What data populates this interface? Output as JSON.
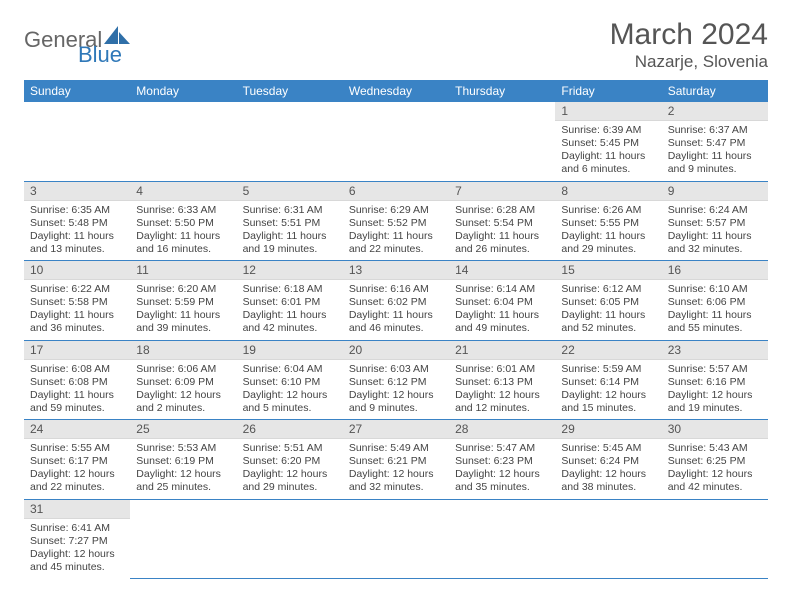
{
  "brand": {
    "part1": "General",
    "part2": "Blue"
  },
  "title": "March 2024",
  "location": "Nazarje, Slovenia",
  "colors": {
    "header_bg": "#3a83c5",
    "header_fg": "#ffffff",
    "daynum_bg": "#e6e6e6",
    "row_divider": "#3a83c5",
    "text": "#444444"
  },
  "weekdays": [
    "Sunday",
    "Monday",
    "Tuesday",
    "Wednesday",
    "Thursday",
    "Friday",
    "Saturday"
  ],
  "weeks": [
    [
      {
        "empty": true
      },
      {
        "empty": true
      },
      {
        "empty": true
      },
      {
        "empty": true
      },
      {
        "empty": true
      },
      {
        "day": "1",
        "sunrise": "Sunrise: 6:39 AM",
        "sunset": "Sunset: 5:45 PM",
        "daylight": "Daylight: 11 hours and 6 minutes."
      },
      {
        "day": "2",
        "sunrise": "Sunrise: 6:37 AM",
        "sunset": "Sunset: 5:47 PM",
        "daylight": "Daylight: 11 hours and 9 minutes."
      }
    ],
    [
      {
        "day": "3",
        "sunrise": "Sunrise: 6:35 AM",
        "sunset": "Sunset: 5:48 PM",
        "daylight": "Daylight: 11 hours and 13 minutes."
      },
      {
        "day": "4",
        "sunrise": "Sunrise: 6:33 AM",
        "sunset": "Sunset: 5:50 PM",
        "daylight": "Daylight: 11 hours and 16 minutes."
      },
      {
        "day": "5",
        "sunrise": "Sunrise: 6:31 AM",
        "sunset": "Sunset: 5:51 PM",
        "daylight": "Daylight: 11 hours and 19 minutes."
      },
      {
        "day": "6",
        "sunrise": "Sunrise: 6:29 AM",
        "sunset": "Sunset: 5:52 PM",
        "daylight": "Daylight: 11 hours and 22 minutes."
      },
      {
        "day": "7",
        "sunrise": "Sunrise: 6:28 AM",
        "sunset": "Sunset: 5:54 PM",
        "daylight": "Daylight: 11 hours and 26 minutes."
      },
      {
        "day": "8",
        "sunrise": "Sunrise: 6:26 AM",
        "sunset": "Sunset: 5:55 PM",
        "daylight": "Daylight: 11 hours and 29 minutes."
      },
      {
        "day": "9",
        "sunrise": "Sunrise: 6:24 AM",
        "sunset": "Sunset: 5:57 PM",
        "daylight": "Daylight: 11 hours and 32 minutes."
      }
    ],
    [
      {
        "day": "10",
        "sunrise": "Sunrise: 6:22 AM",
        "sunset": "Sunset: 5:58 PM",
        "daylight": "Daylight: 11 hours and 36 minutes."
      },
      {
        "day": "11",
        "sunrise": "Sunrise: 6:20 AM",
        "sunset": "Sunset: 5:59 PM",
        "daylight": "Daylight: 11 hours and 39 minutes."
      },
      {
        "day": "12",
        "sunrise": "Sunrise: 6:18 AM",
        "sunset": "Sunset: 6:01 PM",
        "daylight": "Daylight: 11 hours and 42 minutes."
      },
      {
        "day": "13",
        "sunrise": "Sunrise: 6:16 AM",
        "sunset": "Sunset: 6:02 PM",
        "daylight": "Daylight: 11 hours and 46 minutes."
      },
      {
        "day": "14",
        "sunrise": "Sunrise: 6:14 AM",
        "sunset": "Sunset: 6:04 PM",
        "daylight": "Daylight: 11 hours and 49 minutes."
      },
      {
        "day": "15",
        "sunrise": "Sunrise: 6:12 AM",
        "sunset": "Sunset: 6:05 PM",
        "daylight": "Daylight: 11 hours and 52 minutes."
      },
      {
        "day": "16",
        "sunrise": "Sunrise: 6:10 AM",
        "sunset": "Sunset: 6:06 PM",
        "daylight": "Daylight: 11 hours and 55 minutes."
      }
    ],
    [
      {
        "day": "17",
        "sunrise": "Sunrise: 6:08 AM",
        "sunset": "Sunset: 6:08 PM",
        "daylight": "Daylight: 11 hours and 59 minutes."
      },
      {
        "day": "18",
        "sunrise": "Sunrise: 6:06 AM",
        "sunset": "Sunset: 6:09 PM",
        "daylight": "Daylight: 12 hours and 2 minutes."
      },
      {
        "day": "19",
        "sunrise": "Sunrise: 6:04 AM",
        "sunset": "Sunset: 6:10 PM",
        "daylight": "Daylight: 12 hours and 5 minutes."
      },
      {
        "day": "20",
        "sunrise": "Sunrise: 6:03 AM",
        "sunset": "Sunset: 6:12 PM",
        "daylight": "Daylight: 12 hours and 9 minutes."
      },
      {
        "day": "21",
        "sunrise": "Sunrise: 6:01 AM",
        "sunset": "Sunset: 6:13 PM",
        "daylight": "Daylight: 12 hours and 12 minutes."
      },
      {
        "day": "22",
        "sunrise": "Sunrise: 5:59 AM",
        "sunset": "Sunset: 6:14 PM",
        "daylight": "Daylight: 12 hours and 15 minutes."
      },
      {
        "day": "23",
        "sunrise": "Sunrise: 5:57 AM",
        "sunset": "Sunset: 6:16 PM",
        "daylight": "Daylight: 12 hours and 19 minutes."
      }
    ],
    [
      {
        "day": "24",
        "sunrise": "Sunrise: 5:55 AM",
        "sunset": "Sunset: 6:17 PM",
        "daylight": "Daylight: 12 hours and 22 minutes."
      },
      {
        "day": "25",
        "sunrise": "Sunrise: 5:53 AM",
        "sunset": "Sunset: 6:19 PM",
        "daylight": "Daylight: 12 hours and 25 minutes."
      },
      {
        "day": "26",
        "sunrise": "Sunrise: 5:51 AM",
        "sunset": "Sunset: 6:20 PM",
        "daylight": "Daylight: 12 hours and 29 minutes."
      },
      {
        "day": "27",
        "sunrise": "Sunrise: 5:49 AM",
        "sunset": "Sunset: 6:21 PM",
        "daylight": "Daylight: 12 hours and 32 minutes."
      },
      {
        "day": "28",
        "sunrise": "Sunrise: 5:47 AM",
        "sunset": "Sunset: 6:23 PM",
        "daylight": "Daylight: 12 hours and 35 minutes."
      },
      {
        "day": "29",
        "sunrise": "Sunrise: 5:45 AM",
        "sunset": "Sunset: 6:24 PM",
        "daylight": "Daylight: 12 hours and 38 minutes."
      },
      {
        "day": "30",
        "sunrise": "Sunrise: 5:43 AM",
        "sunset": "Sunset: 6:25 PM",
        "daylight": "Daylight: 12 hours and 42 minutes."
      }
    ],
    [
      {
        "day": "31",
        "sunrise": "Sunrise: 6:41 AM",
        "sunset": "Sunset: 7:27 PM",
        "daylight": "Daylight: 12 hours and 45 minutes."
      },
      {
        "empty": true
      },
      {
        "empty": true
      },
      {
        "empty": true
      },
      {
        "empty": true
      },
      {
        "empty": true
      },
      {
        "empty": true
      }
    ]
  ]
}
